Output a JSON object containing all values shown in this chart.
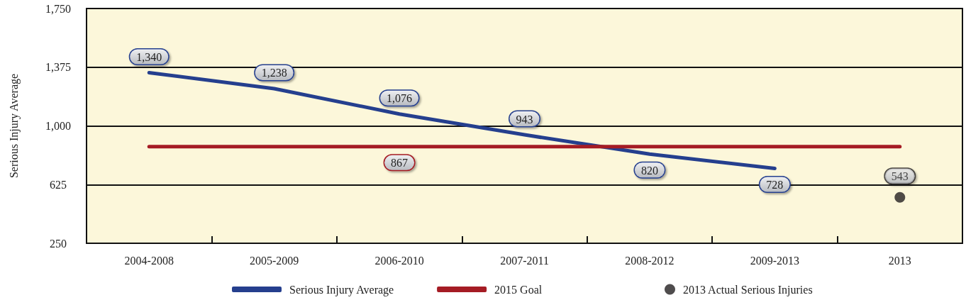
{
  "chart_data": {
    "type": "line",
    "ylabel": "Serious Injury Average",
    "categories": [
      "2004-2008",
      "2005-2009",
      "2006-2010",
      "2007-2011",
      "2008-2012",
      "2009-2013",
      "2013"
    ],
    "ylim": [
      250,
      1750
    ],
    "yticks": [
      250,
      625,
      {
        "value": 1000,
        "label": "1,000"
      },
      {
        "value": 1375,
        "label": "1,375"
      },
      {
        "value": 1750,
        "label": "1,750"
      }
    ],
    "grid": "y",
    "legend": "bottom",
    "marker": "none",
    "line_style": "solid",
    "series": [
      {
        "name": "Serious Injury Average",
        "color": "#253f8e",
        "values": [
          1340,
          1238,
          1076,
          943,
          820,
          728,
          null
        ],
        "value_labels": [
          "1,340",
          "1,238",
          "1,076",
          "943",
          "820",
          "728",
          null
        ]
      },
      {
        "name": "2015 Goal",
        "color": "#a51c24",
        "values": [
          867,
          867,
          867,
          867,
          867,
          867,
          867
        ],
        "value_labels": [
          null,
          null,
          "867",
          null,
          null,
          null,
          null
        ]
      },
      {
        "name": "2013 Actual Serious Injuries",
        "type": "scatter",
        "marker": "circle",
        "color": "#231f20",
        "values": [
          null,
          null,
          null,
          null,
          null,
          null,
          543
        ],
        "value_labels": [
          null,
          null,
          null,
          null,
          null,
          null,
          "543"
        ]
      }
    ]
  }
}
